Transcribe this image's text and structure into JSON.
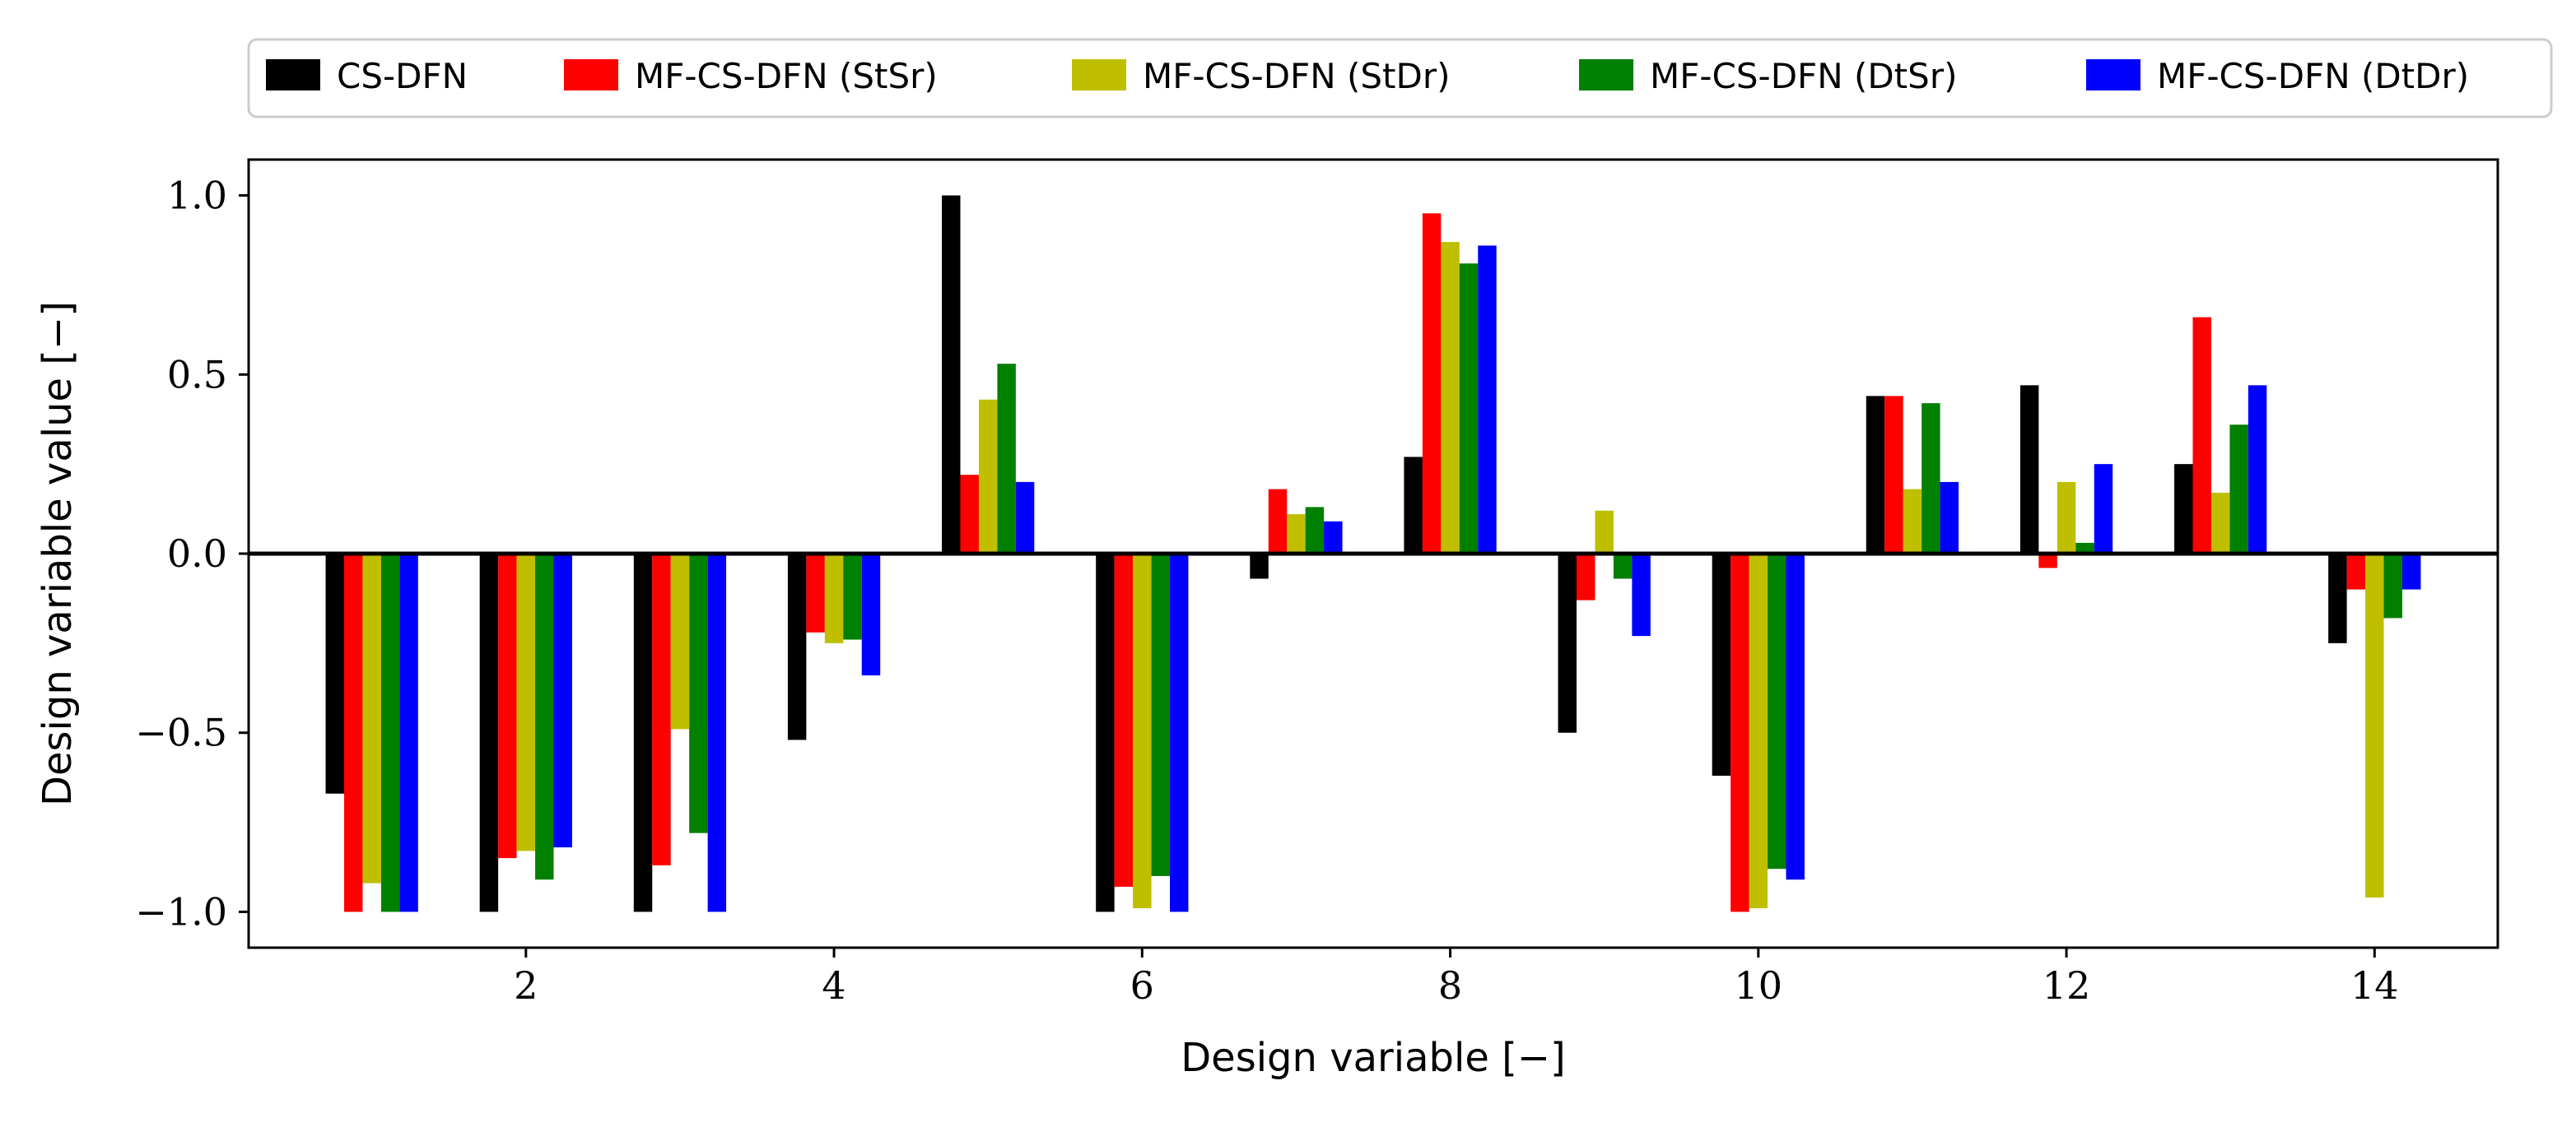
{
  "chart_data": {
    "type": "bar",
    "xlabel": "Design variable [−]",
    "ylabel": "Design variable value [−]",
    "xlim": [
      0.2,
      14.8
    ],
    "ylim": [
      -1.1,
      1.1
    ],
    "xticks": [
      2,
      4,
      6,
      8,
      10,
      12,
      14
    ],
    "xtick_labels": [
      "2",
      "4",
      "6",
      "8",
      "10",
      "12",
      "14"
    ],
    "yticks": [
      1.0,
      0.5,
      0.0,
      -0.5,
      -1.0
    ],
    "ytick_labels": [
      "1.0",
      "0.5",
      "0.0",
      "−0.5",
      "−1.0"
    ],
    "categories": [
      1,
      2,
      3,
      4,
      5,
      6,
      7,
      8,
      9,
      10,
      11,
      12,
      13,
      14
    ],
    "legend_position": "top",
    "series": [
      {
        "name": "CS-DFN",
        "color": "#000000",
        "values": [
          -0.67,
          -1.0,
          -1.0,
          -0.52,
          1.0,
          -1.0,
          -0.07,
          0.27,
          -0.5,
          -0.62,
          0.44,
          0.47,
          0.25,
          -0.25
        ]
      },
      {
        "name": "MF-CS-DFN (StSr)",
        "color": "#ff0000",
        "values": [
          -1.0,
          -0.85,
          -0.87,
          -0.22,
          0.22,
          -0.93,
          0.18,
          0.95,
          -0.13,
          -1.0,
          0.44,
          -0.04,
          0.66,
          -0.1
        ]
      },
      {
        "name": "MF-CS-DFN (StDr)",
        "color": "#bfbf00",
        "values": [
          -0.92,
          -0.83,
          -0.49,
          -0.25,
          0.43,
          -0.99,
          0.11,
          0.87,
          0.12,
          -0.99,
          0.18,
          0.2,
          0.17,
          -0.96
        ]
      },
      {
        "name": "MF-CS-DFN (DtSr)",
        "color": "#008000",
        "values": [
          -1.0,
          -0.91,
          -0.78,
          -0.24,
          0.53,
          -0.9,
          0.13,
          0.81,
          -0.07,
          -0.88,
          0.42,
          0.03,
          0.36,
          -0.18
        ]
      },
      {
        "name": "MF-CS-DFN (DtDr)",
        "color": "#0000ff",
        "values": [
          -1.0,
          -0.82,
          -1.0,
          -0.34,
          0.2,
          -1.0,
          0.09,
          0.86,
          -0.23,
          -0.91,
          0.2,
          0.25,
          0.47,
          -0.1
        ]
      }
    ]
  }
}
